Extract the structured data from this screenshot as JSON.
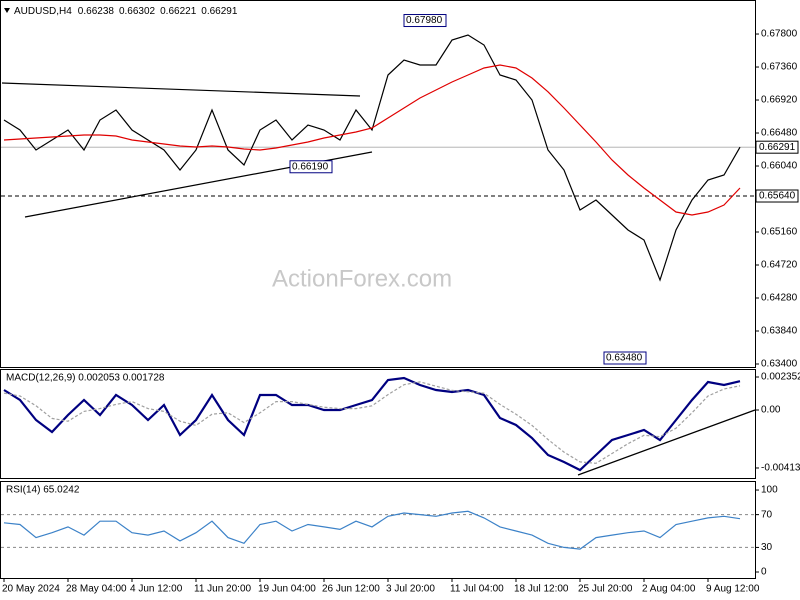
{
  "header": {
    "symbol": "AUDUSD,H4",
    "ohlc": [
      "0.66238",
      "0.66302",
      "0.66221",
      "0.66291"
    ]
  },
  "watermark": "ActionForex.com",
  "chart_data": [
    {
      "type": "line",
      "ylim": [
        0.6336,
        0.68227
      ],
      "yticks": [
        {
          "value": 0.678,
          "label": "0.67800"
        },
        {
          "value": 0.6736,
          "label": "0.67360"
        },
        {
          "value": 0.6692,
          "label": "0.66920"
        },
        {
          "value": 0.6648,
          "label": "0.66480"
        },
        {
          "value": 0.6604,
          "label": "0.66040"
        },
        {
          "value": 0.6516,
          "label": "0.65160"
        },
        {
          "value": 0.6472,
          "label": "0.64720"
        },
        {
          "value": 0.6428,
          "label": "0.64280"
        },
        {
          "value": 0.6384,
          "label": "0.63840"
        },
        {
          "value": 0.634,
          "label": "0.63400"
        }
      ],
      "last_price": {
        "value": 0.66291,
        "label": "0.66291"
      },
      "level": {
        "value": 0.6564,
        "label": "0.65640"
      },
      "annotations": [
        {
          "value": 0.6798,
          "label": "0.67980"
        },
        {
          "value": 0.6619,
          "label": "0.66190"
        },
        {
          "value": 0.6348,
          "label": "0.63480"
        }
      ],
      "series": [
        {
          "color": "#000000",
          "values": [
            0.66653,
            0.6652,
            0.66253,
            0.66387,
            0.6652,
            0.66253,
            0.66653,
            0.66787,
            0.6652,
            0.66387,
            0.66253,
            0.65987,
            0.66253,
            0.66787,
            0.66253,
            0.66053,
            0.6652,
            0.66653,
            0.66387,
            0.66587,
            0.6652,
            0.66387,
            0.66787,
            0.6652,
            0.67253,
            0.67453,
            0.67387,
            0.67387,
            0.6772,
            0.67787,
            0.67653,
            0.67253,
            0.67187,
            0.6692,
            0.66253,
            0.65987,
            0.65453,
            0.65587,
            0.65387,
            0.65187,
            0.65053,
            0.6452,
            0.65187,
            0.65587,
            0.65853,
            0.6592,
            0.66291
          ]
        },
        {
          "color": "#e00000",
          "values": [
            0.66387,
            0.664,
            0.66413,
            0.66427,
            0.6644,
            0.66453,
            0.66453,
            0.6644,
            0.66387,
            0.6636,
            0.66333,
            0.66307,
            0.66293,
            0.66307,
            0.66293,
            0.66267,
            0.66253,
            0.6628,
            0.6632,
            0.6636,
            0.66413,
            0.66453,
            0.66493,
            0.66547,
            0.6668,
            0.66813,
            0.66947,
            0.67053,
            0.6716,
            0.67253,
            0.67347,
            0.67387,
            0.67347,
            0.67213,
            0.6703,
            0.66813,
            0.66587,
            0.6636,
            0.6612,
            0.6592,
            0.65747,
            0.65587,
            0.65427,
            0.65387,
            0.65427,
            0.6552,
            0.65747
          ]
        }
      ]
    },
    {
      "type": "line",
      "title": "MACD(12,26,9) 0.002053 0.001728",
      "ylim": [
        -0.004846,
        0.002851
      ],
      "yticks": [
        0.002352,
        {
          "value": 0,
          "label": "0.00"
        },
        -0.004132
      ],
      "series": [
        {
          "color": "#000080",
          "values": [
            0.001425,
            0.000713,
            -0.000713,
            -0.001568,
            -0.000356,
            0.000713,
            -0.000356,
            0.001069,
            0.000356,
            -0.000713,
            0.000356,
            -0.001782,
            -0.000713,
            0.001069,
            -0.000713,
            -0.001782,
            0.001069,
            0.001069,
            0.000356,
            0.000356,
            0,
            0,
            0.000356,
            0.000713,
            0.002138,
            0.002281,
            0.001782,
            0.001425,
            0.001283,
            0.001425,
            0.001069,
            -0.00057,
            -0.001069,
            -0.001996,
            -0.003207,
            -0.003706,
            -0.004276,
            -0.003207,
            -0.002138,
            -0.001782,
            -0.001425,
            -0.002138,
            -0.000713,
            0.000713,
            0.001996,
            0.001782,
            0.002053
          ]
        },
        {
          "color": "#a0a0a0",
          "values": [
            0.0012,
            0.001,
            0.0003,
            -0.0006,
            -0.0008,
            -0.0001,
            0.0001,
            0.0004,
            0.0006,
            0.0001,
            -0.0001,
            -0.0008,
            -0.0011,
            -0.0003,
            -0.0002,
            -0.0009,
            -0.0002,
            0.0006,
            0.0006,
            0.0004,
            0.0002,
            0.0001,
            0.0001,
            0.0003,
            0.0011,
            0.0018,
            0.002,
            0.0017,
            0.0014,
            0.0013,
            0.0012,
            0.0004,
            -0.0003,
            -0.0011,
            -0.0021,
            -0.003,
            -0.0037,
            -0.0038,
            -0.0031,
            -0.0024,
            -0.0018,
            -0.0019,
            -0.0013,
            -0.0002,
            0.001,
            0.0015,
            0.001728
          ]
        }
      ]
    },
    {
      "type": "line",
      "title": "RSI(14) 65.0242",
      "ylim": [
        -7.3,
        109.8
      ],
      "yticks": [
        100,
        70,
        30,
        0
      ],
      "levels": [
        70,
        30
      ],
      "categories": [
        "20 May 2024",
        null,
        null,
        null,
        "28 May 04:00",
        null,
        null,
        null,
        "4 Jun 12:00",
        null,
        null,
        null,
        "11 Jun 20:00",
        null,
        null,
        null,
        "19 Jun 04:00",
        null,
        null,
        null,
        "26 Jun 12:00",
        null,
        null,
        null,
        "3 Jul 20:00",
        null,
        null,
        null,
        "11 Jul 04:00",
        null,
        null,
        null,
        "18 Jul 12:00",
        null,
        null,
        null,
        "25 Jul 20:00",
        null,
        null,
        null,
        "2 Aug 04:00",
        null,
        null,
        null,
        "9 Aug 12:00",
        null,
        null
      ],
      "series": [
        {
          "color": "#3c82c8",
          "values": [
            60,
            58,
            42,
            48,
            55,
            45,
            62,
            62,
            48,
            45,
            50,
            38,
            48,
            62,
            42,
            35,
            58,
            62,
            50,
            58,
            55,
            52,
            62,
            55,
            68,
            72,
            70,
            68,
            72,
            74,
            66,
            55,
            50,
            45,
            35,
            30,
            28,
            42,
            45,
            48,
            50,
            42,
            58,
            62,
            66,
            68,
            65.0242
          ]
        }
      ]
    }
  ]
}
